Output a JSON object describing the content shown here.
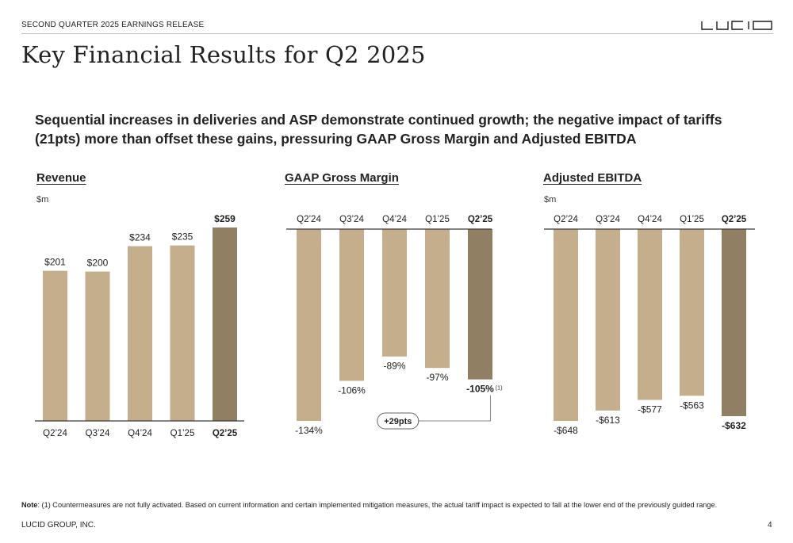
{
  "header": {
    "release_label": "SECOND QUARTER 2025 EARNINGS RELEASE",
    "logo_text": "LUCID"
  },
  "page": {
    "title": "Key Financial Results for Q2 2025",
    "headline": "Sequential increases in deliveries and ASP demonstrate continued growth; the negative impact of tariffs (21pts) more than offset these gains, pressuring GAAP Gross Margin and Adjusted EBITDA"
  },
  "colors": {
    "bar": "#c5ae8b",
    "bar_highlight": "#917f64",
    "axis": "#3a3a3a"
  },
  "chart_data": [
    {
      "type": "bar",
      "title": "Revenue",
      "unit": "$m",
      "categories": [
        "Q2'24",
        "Q3'24",
        "Q4'24",
        "Q1'25",
        "Q2'25"
      ],
      "values": [
        201,
        200,
        234,
        235,
        259
      ],
      "labels": [
        "$201",
        "$200",
        "$234",
        "$235",
        "$259"
      ],
      "highlight_index": 4,
      "ylim": [
        0,
        259
      ]
    },
    {
      "type": "bar",
      "title": "GAAP Gross Margin",
      "unit": "",
      "categories": [
        "Q2'24",
        "Q3'24",
        "Q4'24",
        "Q1'25",
        "Q2'25"
      ],
      "values": [
        -134,
        -106,
        -89,
        -97,
        -105
      ],
      "labels": [
        "-134%",
        "-106%",
        "-89%",
        "-97%",
        "-105%"
      ],
      "highlight_index": 4,
      "ylim": [
        -134,
        0
      ],
      "annotation": {
        "text": "+29pts",
        "from_index": 0,
        "to_index": 4,
        "footnote_marker": "(1)"
      }
    },
    {
      "type": "bar",
      "title": "Adjusted EBITDA",
      "unit": "$m",
      "categories": [
        "Q2'24",
        "Q3'24",
        "Q4'24",
        "Q1'25",
        "Q2'25"
      ],
      "values": [
        -648,
        -613,
        -577,
        -563,
        -632
      ],
      "labels": [
        "-$648",
        "-$613",
        "-$577",
        "-$563",
        "-$632"
      ],
      "highlight_index": 4,
      "ylim": [
        -648,
        0
      ]
    }
  ],
  "footer": {
    "note_label": "Note",
    "note_text": ": (1) Countermeasures are not fully activated. Based on current information and certain implemented mitigation measures, the actual tariff impact is expected to fall at the lower end of the previously guided range.",
    "company": "LUCID GROUP, INC.",
    "page_number": "4"
  }
}
